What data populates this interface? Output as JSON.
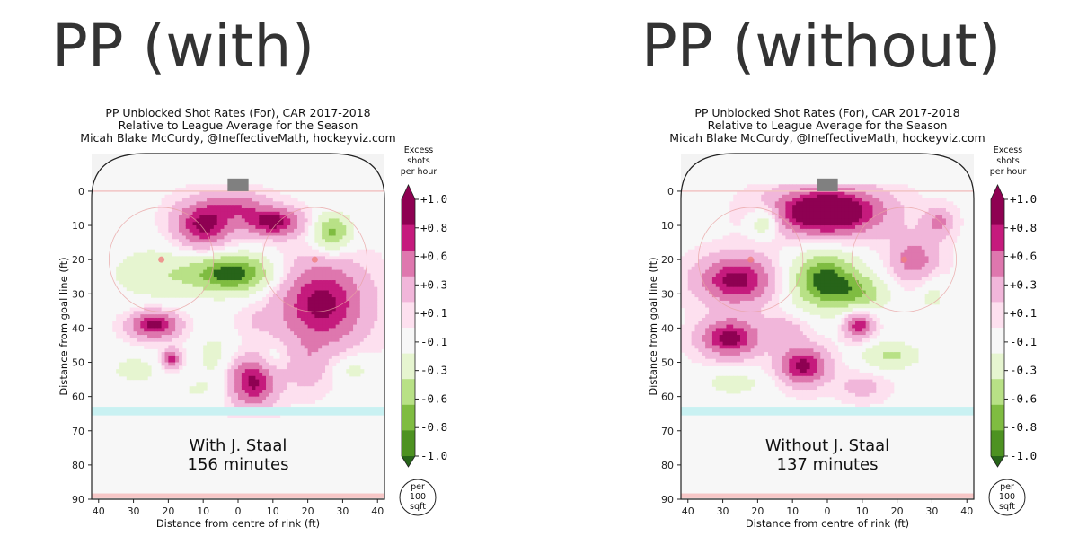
{
  "chart_data": [
    {
      "type": "heatmap",
      "page_title": "PP (with)",
      "title": [
        "PP Unblocked Shot Rates (For), CAR 2017-2018",
        "Relative to League Average for the Season",
        "Micah Blake McCurdy, @IneffectiveMath, hockeyviz.com"
      ],
      "xlabel": "Distance from centre of rink (ft)",
      "ylabel": "Distance from goal line (ft)",
      "x_ticks": [
        "40",
        "30",
        "20",
        "10",
        "0",
        "10",
        "20",
        "30",
        "40"
      ],
      "y_ticks": [
        "0",
        "10",
        "20",
        "30",
        "40",
        "50",
        "60",
        "70",
        "80",
        "90"
      ],
      "xlim": [
        -42,
        42
      ],
      "ylim": [
        -11,
        90
      ],
      "annotation_lines": [
        "With J. Staal",
        "156 minutes"
      ],
      "colorbar": {
        "title": [
          "Excess",
          "shots",
          "per hour"
        ],
        "tick_labels": [
          "+1.0",
          "+0.8",
          "+0.6",
          "+0.3",
          "+0.1",
          "-0.1",
          "-0.3",
          "-0.6",
          "-0.8",
          "-1.0"
        ],
        "unit_label": [
          "per",
          "100",
          "sqft"
        ]
      },
      "blobs": [
        {
          "x": -10,
          "y": 10,
          "v": 1.0,
          "sx": 6,
          "sy": 5
        },
        {
          "x": 10,
          "y": 9,
          "v": 1.0,
          "sx": 6,
          "sy": 3
        },
        {
          "x": 0,
          "y": 4,
          "v": 0.5,
          "sx": 6,
          "sy": 3
        },
        {
          "x": -1,
          "y": 24,
          "v": -1.0,
          "sx": 8,
          "sy": 4
        },
        {
          "x": -22,
          "y": 24,
          "v": -0.4,
          "sx": 11,
          "sy": 6
        },
        {
          "x": 27,
          "y": 12,
          "v": -0.8,
          "sx": 4,
          "sy": 4
        },
        {
          "x": 24,
          "y": 33,
          "v": 1.0,
          "sx": 9,
          "sy": 9
        },
        {
          "x": -24,
          "y": 39,
          "v": 1.0,
          "sx": 5,
          "sy": 3
        },
        {
          "x": -19,
          "y": 49,
          "v": 0.8,
          "sx": 2,
          "sy": 2
        },
        {
          "x": 4,
          "y": 56,
          "v": 1.0,
          "sx": 5,
          "sy": 5
        },
        {
          "x": -7,
          "y": 48,
          "v": -0.3,
          "sx": 4,
          "sy": 5
        },
        {
          "x": 20,
          "y": 52,
          "v": 0.3,
          "sx": 4,
          "sy": 5
        },
        {
          "x": -30,
          "y": 52,
          "v": -0.3,
          "sx": 5,
          "sy": 3
        },
        {
          "x": 33,
          "y": 52,
          "v": -0.3,
          "sx": 4,
          "sy": 3
        },
        {
          "x": 5,
          "y": 38,
          "v": 0.15,
          "sx": 4,
          "sy": 3
        },
        {
          "x": -12,
          "y": 58,
          "v": -0.2,
          "sx": 10,
          "sy": 3
        },
        {
          "x": 10,
          "y": 49,
          "v": -0.2,
          "sx": 3,
          "sy": 3
        }
      ]
    },
    {
      "type": "heatmap",
      "page_title": "PP (without)",
      "title": [
        "PP Unblocked Shot Rates (For), CAR 2017-2018",
        "Relative to League Average for the Season",
        "Micah Blake McCurdy, @IneffectiveMath, hockeyviz.com"
      ],
      "xlabel": "Distance from centre of rink (ft)",
      "ylabel": "Distance from goal line (ft)",
      "x_ticks": [
        "40",
        "30",
        "20",
        "10",
        "0",
        "10",
        "20",
        "30",
        "40"
      ],
      "y_ticks": [
        "0",
        "10",
        "20",
        "30",
        "40",
        "50",
        "60",
        "70",
        "80",
        "90"
      ],
      "xlim": [
        -42,
        42
      ],
      "ylim": [
        -11,
        90
      ],
      "annotation_lines": [
        "Without J. Staal",
        "137 minutes"
      ],
      "colorbar": {
        "title": [
          "Excess",
          "shots",
          "per hour"
        ],
        "tick_labels": [
          "+1.0",
          "+0.8",
          "+0.6",
          "+0.3",
          "+0.1",
          "-0.1",
          "-0.3",
          "-0.6",
          "-0.8",
          "-1.0"
        ],
        "unit_label": [
          "per",
          "100",
          "sqft"
        ]
      },
      "blobs": [
        {
          "x": 0,
          "y": 6,
          "v": 1.4,
          "sx": 11,
          "sy": 5
        },
        {
          "x": -26,
          "y": 26,
          "v": 1.0,
          "sx": 8,
          "sy": 5
        },
        {
          "x": -28,
          "y": 43,
          "v": 1.0,
          "sx": 6,
          "sy": 4
        },
        {
          "x": -7,
          "y": 51,
          "v": 1.0,
          "sx": 5,
          "sy": 4
        },
        {
          "x": 9,
          "y": 39,
          "v": 0.9,
          "sx": 3,
          "sy": 3
        },
        {
          "x": -1,
          "y": 26,
          "v": -1.0,
          "sx": 7,
          "sy": 6
        },
        {
          "x": 10,
          "y": 30,
          "v": -0.5,
          "sx": 6,
          "sy": 4
        },
        {
          "x": -18,
          "y": 9,
          "v": -0.6,
          "sx": 3,
          "sy": 3
        },
        {
          "x": 25,
          "y": 20,
          "v": 0.6,
          "sx": 5,
          "sy": 5
        },
        {
          "x": 32,
          "y": 9,
          "v": 0.5,
          "sx": 3,
          "sy": 3
        },
        {
          "x": 18,
          "y": 48,
          "v": -0.5,
          "sx": 6,
          "sy": 3
        },
        {
          "x": 10,
          "y": 57,
          "v": 0.3,
          "sx": 5,
          "sy": 3
        },
        {
          "x": -27,
          "y": 56,
          "v": -0.3,
          "sx": 7,
          "sy": 3
        },
        {
          "x": 30,
          "y": 30,
          "v": -0.3,
          "sx": 3,
          "sy": 4
        },
        {
          "x": 34,
          "y": 56,
          "v": -0.2,
          "sx": 3,
          "sy": 2
        },
        {
          "x": -12,
          "y": 40,
          "v": 0.3,
          "sx": 5,
          "sy": 3
        }
      ]
    }
  ]
}
